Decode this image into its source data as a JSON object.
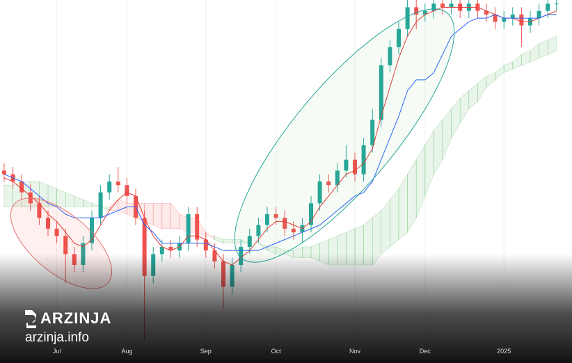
{
  "chart_data": {
    "type": "candlestick",
    "ylim": [
      0,
      100
    ],
    "up_color": "#26a69a",
    "down_color": "#ef5350",
    "open": [
      53,
      52,
      50,
      47,
      44,
      40,
      37,
      35,
      30,
      27,
      33,
      40,
      47,
      50,
      49,
      46,
      40,
      24,
      30,
      32,
      31,
      33,
      41,
      34,
      31,
      28,
      21,
      27,
      32,
      35,
      38,
      41,
      40,
      37,
      36,
      38,
      44,
      50,
      49,
      53,
      56,
      52,
      60,
      67,
      82,
      87,
      92,
      98,
      96,
      97,
      99,
      98,
      99,
      97,
      99,
      97,
      96,
      94,
      95,
      96,
      93,
      95,
      97,
      99
    ],
    "high": [
      55,
      54,
      52,
      49,
      46,
      42,
      39,
      37,
      32,
      35,
      42,
      49,
      52,
      54,
      51,
      48,
      42,
      32,
      34,
      34,
      35,
      43,
      43,
      36,
      33,
      30,
      29,
      34,
      37,
      40,
      43,
      43,
      42,
      39,
      40,
      46,
      52,
      52,
      55,
      60,
      58,
      62,
      70,
      84,
      89,
      94,
      100,
      100,
      99,
      101,
      101,
      101,
      101,
      101,
      101,
      99,
      98,
      97,
      98,
      98,
      97,
      99,
      101,
      101
    ],
    "low": [
      50,
      48,
      45,
      42,
      38,
      35,
      33,
      22,
      25,
      25,
      31,
      38,
      45,
      47,
      44,
      38,
      6,
      22,
      28,
      29,
      29,
      31,
      32,
      29,
      26,
      15,
      19,
      25,
      30,
      33,
      36,
      38,
      35,
      34,
      33,
      36,
      42,
      47,
      47,
      51,
      50,
      50,
      58,
      65,
      80,
      85,
      90,
      92,
      94,
      95,
      96,
      96,
      95,
      95,
      95,
      94,
      92,
      92,
      93,
      87,
      91,
      93,
      95,
      97
    ],
    "close": [
      52,
      50,
      47,
      44,
      40,
      37,
      35,
      30,
      27,
      33,
      40,
      47,
      50,
      49,
      46,
      40,
      24,
      30,
      32,
      31,
      33,
      41,
      34,
      31,
      28,
      21,
      27,
      32,
      35,
      38,
      41,
      40,
      37,
      36,
      38,
      44,
      50,
      49,
      53,
      56,
      52,
      60,
      67,
      82,
      87,
      92,
      98,
      96,
      97,
      99,
      98,
      99,
      97,
      99,
      97,
      96,
      94,
      95,
      96,
      93,
      95,
      97,
      99,
      99
    ],
    "lines": [
      {
        "color": "#e53935",
        "values": [
          51,
          50,
          48,
          46,
          44,
          41,
          39,
          36,
          33,
          32,
          34,
          38,
          42,
          45,
          47,
          46,
          40,
          35,
          32,
          31,
          32,
          35,
          35,
          34,
          31,
          28,
          27,
          29,
          31,
          34,
          37,
          39,
          39,
          38,
          37,
          39,
          43,
          46,
          49,
          52,
          53,
          55,
          59,
          68,
          76,
          84,
          90,
          94,
          96,
          97,
          98,
          98,
          98,
          98,
          98,
          97,
          96,
          95,
          95,
          94,
          94,
          95,
          96,
          97
        ]
      },
      {
        "color": "#2962ff",
        "values": [
          52,
          51,
          50,
          48,
          46,
          44,
          43,
          41,
          40,
          40,
          40,
          40,
          41,
          42,
          43,
          43,
          38,
          36,
          33,
          33,
          33,
          33,
          33,
          33,
          32,
          31,
          31,
          31,
          31,
          31,
          32,
          33,
          34,
          35,
          36,
          37,
          38,
          40,
          42,
          44,
          46,
          47,
          50,
          56,
          62,
          68,
          75,
          78,
          78,
          80,
          85,
          90,
          92,
          94,
          95,
          95,
          96,
          95,
          95,
          95,
          95,
          95,
          96,
          96
        ]
      }
    ],
    "cloud": {
      "up_color": "#4caf50",
      "down_color": "#ef5350",
      "span_a": [
        49,
        49,
        50,
        50,
        50,
        49,
        48,
        47,
        46,
        45,
        44,
        43,
        42,
        42,
        41,
        40,
        39,
        38,
        37,
        37,
        37,
        36,
        36,
        35,
        35,
        34,
        34,
        34,
        33,
        33,
        32,
        32,
        31,
        31,
        32,
        32,
        33,
        34,
        35,
        36,
        37,
        38,
        40,
        42,
        45,
        48,
        52,
        56,
        60,
        64,
        67,
        70,
        73,
        75,
        77,
        79,
        80,
        82,
        83,
        85,
        86,
        88,
        89,
        90
      ],
      "span_b": [
        43,
        43,
        43,
        43,
        43,
        43,
        43,
        43,
        43,
        43,
        43,
        43,
        43,
        45,
        44,
        44,
        44,
        44,
        44,
        44,
        41,
        40,
        40,
        36,
        34,
        33,
        33,
        33,
        33,
        33,
        31,
        30,
        30,
        29,
        29,
        29,
        28,
        27,
        27,
        27,
        27,
        27,
        27,
        30,
        32,
        34,
        36,
        40,
        46,
        52,
        56,
        62,
        66,
        70,
        72,
        76,
        78,
        80,
        81,
        82,
        83,
        84,
        85,
        86
      ]
    },
    "xticks": [
      {
        "value": 6,
        "label": "Jul"
      },
      {
        "value": 14,
        "label": "Aug"
      },
      {
        "value": 23,
        "label": "Sep"
      },
      {
        "value": 31,
        "label": "Oct"
      },
      {
        "value": 40,
        "label": "Nov"
      },
      {
        "value": 48,
        "label": "Dec"
      },
      {
        "value": 57,
        "label": "2025"
      }
    ]
  },
  "brand": {
    "name": "ARZINJA",
    "site": "arzinja.info"
  }
}
